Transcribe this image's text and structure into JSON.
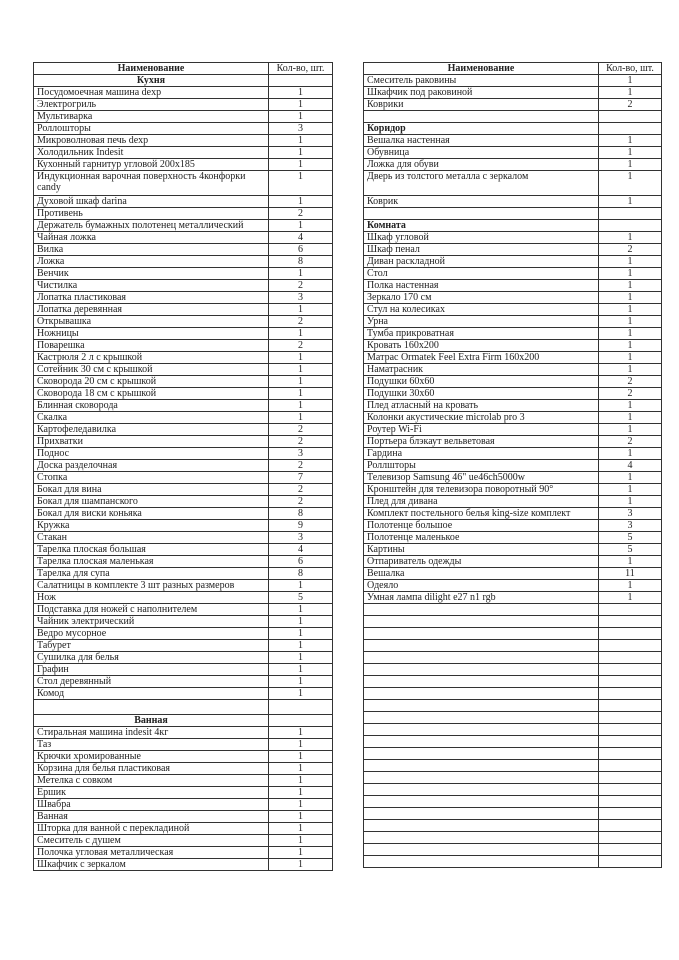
{
  "left_table": {
    "header": {
      "name": "Наименование",
      "qty": "Кол-во, шт."
    },
    "rows": [
      {
        "type": "section",
        "name": "Кухня"
      },
      {
        "type": "item",
        "name": "Посудомоечная машина dexp",
        "qty": "1"
      },
      {
        "type": "item",
        "name": "Электрогриль",
        "qty": "1"
      },
      {
        "type": "item",
        "name": "Мультиварка",
        "qty": "1"
      },
      {
        "type": "item",
        "name": "Роллошторы",
        "qty": "3"
      },
      {
        "type": "item",
        "name": "Микроволновая печь dexp",
        "qty": "1"
      },
      {
        "type": "item",
        "name": "Холодильник Indesit",
        "qty": "1"
      },
      {
        "type": "item",
        "name": "Кухонный гарнитур угловой 200x185",
        "qty": "1"
      },
      {
        "type": "double",
        "name": "Индукционная варочная поверхность 4конфорки candy",
        "qty": "1"
      },
      {
        "type": "item",
        "name": "Духовой шкаф darina",
        "qty": "1"
      },
      {
        "type": "item",
        "name": "Противень",
        "qty": "2"
      },
      {
        "type": "item",
        "name": "Держатель бумажных полотенец металлический",
        "qty": "1"
      },
      {
        "type": "item",
        "name": "Чайная ложка",
        "qty": "4"
      },
      {
        "type": "item",
        "name": "Вилка",
        "qty": "6"
      },
      {
        "type": "item",
        "name": "Ложка",
        "qty": "8"
      },
      {
        "type": "item",
        "name": "Венчик",
        "qty": "1"
      },
      {
        "type": "item",
        "name": "Чистилка",
        "qty": "2"
      },
      {
        "type": "item",
        "name": "Лопатка пластиковая",
        "qty": "3"
      },
      {
        "type": "item",
        "name": "Лопатка деревянная",
        "qty": "1"
      },
      {
        "type": "item",
        "name": "Открывашка",
        "qty": "2"
      },
      {
        "type": "item",
        "name": "Ножницы",
        "qty": "1"
      },
      {
        "type": "item",
        "name": "Поварешка",
        "qty": "2"
      },
      {
        "type": "item",
        "name": "Кастрюля 2 л с крышкой",
        "qty": "1"
      },
      {
        "type": "item",
        "name": "Сотейник 30 см с крышкой",
        "qty": "1"
      },
      {
        "type": "item",
        "name": "Сковорода 20 см с крышкой",
        "qty": "1"
      },
      {
        "type": "item",
        "name": "Сковорода 18 см с крышкой",
        "qty": "1"
      },
      {
        "type": "item",
        "name": "Блинная сковорода",
        "qty": "1"
      },
      {
        "type": "item",
        "name": "Скалка",
        "qty": "1"
      },
      {
        "type": "item",
        "name": "Картофеледавилка",
        "qty": "2"
      },
      {
        "type": "item",
        "name": "Прихватки",
        "qty": "2"
      },
      {
        "type": "item",
        "name": "Поднос",
        "qty": "3"
      },
      {
        "type": "item",
        "name": "Доска разделочная",
        "qty": "2"
      },
      {
        "type": "item",
        "name": "Стопка",
        "qty": "7"
      },
      {
        "type": "item",
        "name": "Бокал для вина",
        "qty": "2"
      },
      {
        "type": "item",
        "name": "Бокал для шампанского",
        "qty": "2"
      },
      {
        "type": "item",
        "name": "Бокал для виски коньяка",
        "qty": "8"
      },
      {
        "type": "item",
        "name": "Кружка",
        "qty": "9"
      },
      {
        "type": "item",
        "name": "Стакан",
        "qty": "3"
      },
      {
        "type": "item",
        "name": "Тарелка плоская большая",
        "qty": "4"
      },
      {
        "type": "item",
        "name": "Тарелка плоская маленькая",
        "qty": "6"
      },
      {
        "type": "item",
        "name": "Тарелка для супа",
        "qty": "8"
      },
      {
        "type": "item",
        "name": "Салатницы в комплекте 3 шт разных размеров",
        "qty": "1"
      },
      {
        "type": "item",
        "name": "Нож",
        "qty": "5"
      },
      {
        "type": "item",
        "name": "Подставка для ножей с наполнителем",
        "qty": "1"
      },
      {
        "type": "item",
        "name": "Чайник электрический",
        "qty": "1"
      },
      {
        "type": "item",
        "name": "Ведро мусорное",
        "qty": "1"
      },
      {
        "type": "item",
        "name": "Табурет",
        "qty": "1"
      },
      {
        "type": "item",
        "name": "Сушилка для белья",
        "qty": "1"
      },
      {
        "type": "item",
        "name": "Графин",
        "qty": "1"
      },
      {
        "type": "item",
        "name": "Стол деревянный",
        "qty": "1"
      },
      {
        "type": "item",
        "name": "Комод",
        "qty": "1"
      },
      {
        "type": "blank_tall"
      },
      {
        "type": "section",
        "name": "Ванная"
      },
      {
        "type": "item",
        "name": "Стиральная машина indesit 4кг",
        "qty": "1"
      },
      {
        "type": "item",
        "name": "Таз",
        "qty": "1"
      },
      {
        "type": "item",
        "name": "Крючки хромированные",
        "qty": "1"
      },
      {
        "type": "item",
        "name": "Корзина для белья пластиковая",
        "qty": "1"
      },
      {
        "type": "item",
        "name": "Метелка с совком",
        "qty": "1"
      },
      {
        "type": "item",
        "name": "Ершик",
        "qty": "1"
      },
      {
        "type": "item",
        "name": "Швабра",
        "qty": "1"
      },
      {
        "type": "item",
        "name": "Ванная",
        "qty": "1"
      },
      {
        "type": "item",
        "name": "Шторка для ванной с перекладиной",
        "qty": "1"
      },
      {
        "type": "item",
        "name": "Смеситель с душем",
        "qty": "1"
      },
      {
        "type": "item",
        "name": "Полочка угловая металлическая",
        "qty": "1"
      },
      {
        "type": "item",
        "name": "Шкафчик с зеркалом",
        "qty": "1"
      }
    ]
  },
  "right_table": {
    "header": {
      "name": "Наименование",
      "qty": "Кол-во, шт."
    },
    "rows": [
      {
        "type": "item",
        "name": "Смеситель раковины",
        "qty": "1"
      },
      {
        "type": "item",
        "name": "Шкафчик под раковиной",
        "qty": "1"
      },
      {
        "type": "item",
        "name": "Коврики",
        "qty": "2"
      },
      {
        "type": "blank"
      },
      {
        "type": "section_left",
        "name": "Коридор"
      },
      {
        "type": "item",
        "name": "Вешалка настенная",
        "qty": "1"
      },
      {
        "type": "item",
        "name": "Обувница",
        "qty": "1"
      },
      {
        "type": "item",
        "name": "Ложка для обуви",
        "qty": "1"
      },
      {
        "type": "double",
        "name": "Дверь из толстого металла с зеркалом",
        "qty": "1"
      },
      {
        "type": "item",
        "name": "Коврик",
        "qty": "1"
      },
      {
        "type": "blank"
      },
      {
        "type": "section_left",
        "name": "Комната"
      },
      {
        "type": "item",
        "name": "Шкаф угловой",
        "qty": "1"
      },
      {
        "type": "item",
        "name": "Шкаф пенал",
        "qty": "2"
      },
      {
        "type": "item",
        "name": "Диван раскладной",
        "qty": "1"
      },
      {
        "type": "item",
        "name": "Стол",
        "qty": "1"
      },
      {
        "type": "item",
        "name": "Полка настенная",
        "qty": "1"
      },
      {
        "type": "item",
        "name": "Зеркало 170 см",
        "qty": "1"
      },
      {
        "type": "item",
        "name": "Стул на колесиках",
        "qty": "1"
      },
      {
        "type": "item",
        "name": "Урна",
        "qty": "1"
      },
      {
        "type": "item",
        "name": "Тумба прикроватная",
        "qty": "1"
      },
      {
        "type": "item",
        "name": "Кровать 160x200",
        "qty": "1"
      },
      {
        "type": "item",
        "name": "Матрас Ormatek Feel Extra Firm 160x200",
        "qty": "1"
      },
      {
        "type": "item",
        "name": "Наматрасник",
        "qty": "1"
      },
      {
        "type": "item",
        "name": "Подушки 60x60",
        "qty": "2"
      },
      {
        "type": "item",
        "name": "Подушки 30x60",
        "qty": "2"
      },
      {
        "type": "item",
        "name": "Плед атласный на кровать",
        "qty": "1"
      },
      {
        "type": "item",
        "name": "Колонки акустические microlab pro 3",
        "qty": "1"
      },
      {
        "type": "item",
        "name": "Роутер Wi-Fi",
        "qty": "1"
      },
      {
        "type": "item",
        "name": "Портьера блэкаут вельветовая",
        "qty": "2"
      },
      {
        "type": "item",
        "name": "Гардина",
        "qty": "1"
      },
      {
        "type": "item",
        "name": "Роллшторы",
        "qty": "4"
      },
      {
        "type": "item",
        "name": "Телевизор Samsung 46\" ue46ch5000w",
        "qty": "1"
      },
      {
        "type": "item",
        "name": "Кронштейн для телевизора поворотный 90°",
        "qty": "1"
      },
      {
        "type": "item",
        "name": "Плед для дивана",
        "qty": "1"
      },
      {
        "type": "item",
        "name": "Комплект постельного белья king-size комплект",
        "qty": "3"
      },
      {
        "type": "item",
        "name": "Полотенце большое",
        "qty": "3"
      },
      {
        "type": "item",
        "name": "Полотенце маленькое",
        "qty": "5"
      },
      {
        "type": "item",
        "name": "Картины",
        "qty": "5"
      },
      {
        "type": "item",
        "name": "Отпариватель одежды",
        "qty": "1"
      },
      {
        "type": "item",
        "name": "Вешалка",
        "qty": "11"
      },
      {
        "type": "item",
        "name": "Одеяло",
        "qty": "1"
      },
      {
        "type": "item",
        "name": "Умная лампа dilight e27 n1 rgb",
        "qty": "1"
      },
      {
        "type": "blank"
      },
      {
        "type": "blank"
      },
      {
        "type": "blank"
      },
      {
        "type": "blank"
      },
      {
        "type": "blank"
      },
      {
        "type": "blank"
      },
      {
        "type": "blank"
      },
      {
        "type": "blank"
      },
      {
        "type": "blank"
      },
      {
        "type": "blank"
      },
      {
        "type": "blank"
      },
      {
        "type": "blank"
      },
      {
        "type": "blank"
      },
      {
        "type": "blank"
      },
      {
        "type": "blank"
      },
      {
        "type": "blank"
      },
      {
        "type": "blank"
      },
      {
        "type": "blank"
      },
      {
        "type": "blank"
      },
      {
        "type": "blank"
      },
      {
        "type": "blank"
      },
      {
        "type": "blank"
      }
    ]
  }
}
